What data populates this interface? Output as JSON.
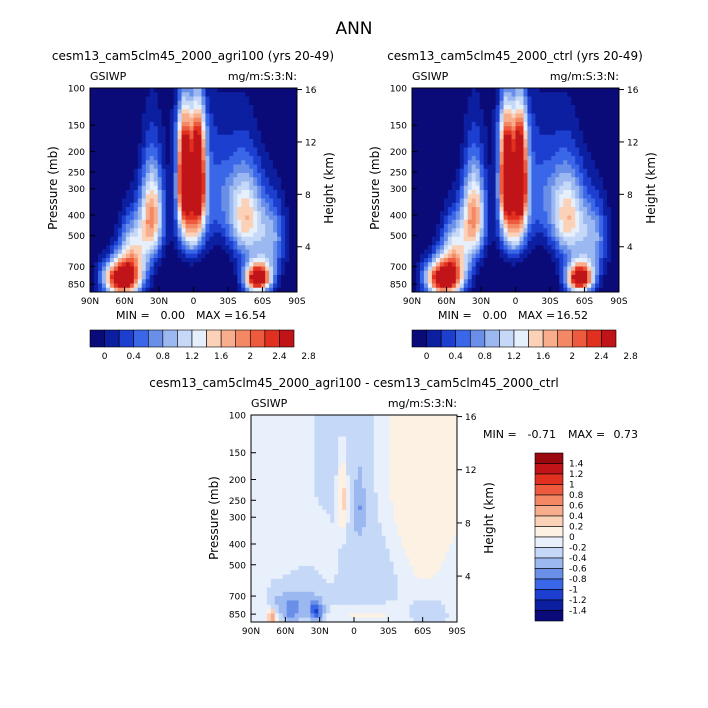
{
  "page_title": "ANN",
  "colors": {
    "cool": [
      "#0a0a78",
      "#0c1fa0",
      "#1d3fd0",
      "#3a66e8",
      "#6a8fe8",
      "#9cb8f0",
      "#c6d8f8",
      "#e6effc"
    ],
    "warm": [
      "#fdf1e4",
      "#fbd2b8",
      "#f8ae8d",
      "#f48864",
      "#ee5a3e",
      "#e23020",
      "#c01418",
      "#98080e",
      "#6e0000"
    ]
  },
  "chart_data": [
    {
      "type": "heatmap",
      "id": "agri100",
      "title": "cesm13_cam5clm45_2000_agri100 (yrs 20-49)",
      "left_label": "GSIWP",
      "right_label": "mg/m:S:3:N:",
      "ylabel": "Pressure (mb)",
      "y2label": "Height (km)",
      "xticks": [
        "90N",
        "60N",
        "30N",
        "0",
        "30S",
        "60S",
        "90S"
      ],
      "yticks": [
        "100",
        "150",
        "200",
        "250",
        "300",
        "400",
        "500",
        "700",
        "850"
      ],
      "y2ticks": [
        "16",
        "12",
        "8",
        "4"
      ],
      "xlim": [
        90,
        -90
      ],
      "ylim_mb": [
        100,
        925
      ],
      "stats": {
        "min_label": "MIN =",
        "min": "0.00",
        "max_label": "MAX =",
        "max": "16.54"
      },
      "min": 0.0,
      "max": 16.54,
      "colorbar": {
        "levels": [
          0,
          0.2,
          0.4,
          0.6,
          0.8,
          1.0,
          1.2,
          1.4,
          1.6,
          1.8,
          2.0,
          2.2,
          2.4,
          2.6,
          2.8
        ],
        "labels": [
          "0",
          "0.4",
          "0.8",
          "1.2",
          "1.6",
          "2",
          "2.4",
          "2.8"
        ]
      },
      "features": [
        {
          "lat": 62,
          "p": 800,
          "amp": 3.3,
          "slat": 11,
          "sp": 110
        },
        {
          "lat": -56,
          "p": 795,
          "amp": 3.3,
          "slat": 8,
          "sp": 90
        },
        {
          "lat": 36,
          "p": 400,
          "amp": 2.0,
          "slat": 7,
          "sp": 140
        },
        {
          "lat": 52,
          "p": 580,
          "amp": 1.4,
          "slat": 9,
          "sp": 140
        },
        {
          "lat": -46,
          "p": 420,
          "amp": 1.6,
          "slat": 10,
          "sp": 140
        },
        {
          "lat": -68,
          "p": 520,
          "amp": 1.0,
          "slat": 9,
          "sp": 150
        },
        {
          "lat": 8,
          "p": 270,
          "amp": 3.4,
          "slat": 4.2,
          "sp": 95
        },
        {
          "lat": -4,
          "p": 270,
          "amp": 3.4,
          "slat": 4.2,
          "sp": 95
        },
        {
          "lat": 2,
          "p": 460,
          "amp": 1.6,
          "slat": 8,
          "sp": 110
        },
        {
          "lat": 2,
          "p": 160,
          "amp": 0.8,
          "slat": 10,
          "sp": 40
        },
        {
          "lat": -22,
          "p": 320,
          "amp": 0.7,
          "slat": 16,
          "sp": 130
        }
      ]
    },
    {
      "type": "heatmap",
      "id": "ctrl",
      "title": "cesm13_cam5clm45_2000_ctrl (yrs 20-49)",
      "left_label": "GSIWP",
      "right_label": "mg/m:S:3:N:",
      "ylabel": "Pressure (mb)",
      "y2label": "Height (km)",
      "xticks": [
        "90N",
        "60N",
        "30N",
        "0",
        "30S",
        "60S",
        "90S"
      ],
      "yticks": [
        "100",
        "150",
        "200",
        "250",
        "300",
        "400",
        "500",
        "700",
        "850"
      ],
      "y2ticks": [
        "16",
        "12",
        "8",
        "4"
      ],
      "xlim": [
        90,
        -90
      ],
      "ylim_mb": [
        100,
        925
      ],
      "stats": {
        "min_label": "MIN =",
        "min": "0.00",
        "max_label": "MAX =",
        "max": "16.52"
      },
      "min": 0.0,
      "max": 16.52,
      "colorbar": {
        "levels": [
          0,
          0.2,
          0.4,
          0.6,
          0.8,
          1.0,
          1.2,
          1.4,
          1.6,
          1.8,
          2.0,
          2.2,
          2.4,
          2.6,
          2.8
        ],
        "labels": [
          "0",
          "0.4",
          "0.8",
          "1.2",
          "1.6",
          "2",
          "2.4",
          "2.8"
        ]
      },
      "features": [
        {
          "lat": 62,
          "p": 800,
          "amp": 3.3,
          "slat": 11,
          "sp": 110
        },
        {
          "lat": -56,
          "p": 795,
          "amp": 3.3,
          "slat": 8,
          "sp": 90
        },
        {
          "lat": 36,
          "p": 400,
          "amp": 2.0,
          "slat": 7,
          "sp": 140
        },
        {
          "lat": 52,
          "p": 580,
          "amp": 1.4,
          "slat": 9,
          "sp": 140
        },
        {
          "lat": -46,
          "p": 420,
          "amp": 1.6,
          "slat": 10,
          "sp": 140
        },
        {
          "lat": -68,
          "p": 520,
          "amp": 1.0,
          "slat": 9,
          "sp": 150
        },
        {
          "lat": 8,
          "p": 270,
          "amp": 3.4,
          "slat": 4.2,
          "sp": 95
        },
        {
          "lat": -4,
          "p": 270,
          "amp": 3.4,
          "slat": 4.2,
          "sp": 95
        },
        {
          "lat": 2,
          "p": 460,
          "amp": 1.6,
          "slat": 8,
          "sp": 110
        },
        {
          "lat": 2,
          "p": 160,
          "amp": 0.8,
          "slat": 10,
          "sp": 40
        },
        {
          "lat": -22,
          "p": 320,
          "amp": 0.7,
          "slat": 16,
          "sp": 130
        }
      ]
    },
    {
      "type": "heatmap",
      "id": "diff",
      "title": "cesm13_cam5clm45_2000_agri100 - cesm13_cam5clm45_2000_ctrl",
      "left_label": "GSIWP",
      "right_label": "mg/m:S:3:N:",
      "ylabel": "Pressure (mb)",
      "y2label": "Height (km)",
      "xticks": [
        "90N",
        "60N",
        "30N",
        "0",
        "30S",
        "60S",
        "90S"
      ],
      "yticks": [
        "100",
        "150",
        "200",
        "250",
        "300",
        "400",
        "500",
        "700",
        "850"
      ],
      "y2ticks": [
        "16",
        "12",
        "8",
        "4"
      ],
      "xlim": [
        90,
        -90
      ],
      "ylim_mb": [
        100,
        925
      ],
      "stats": {
        "min_label": "MIN =",
        "min": "-0.71",
        "max_label": "MAX =",
        "max": "0.73"
      },
      "min": -0.71,
      "max": 0.73,
      "colorbar": {
        "levels": [
          -1.4,
          -1.2,
          -1.0,
          -0.8,
          -0.6,
          -0.4,
          -0.2,
          0,
          0.2,
          0.4,
          0.6,
          0.8,
          1.0,
          1.2,
          1.4
        ],
        "labels": [
          "1.4",
          "1.2",
          "1",
          "0.8",
          "0.6",
          "0.4",
          "0.2",
          "0",
          "-0.2",
          "-0.4",
          "-0.6",
          "-0.8",
          "-1",
          "-1.2",
          "-1.4"
        ]
      },
      "features": [
        {
          "lat": -8,
          "p": 300,
          "amp": -0.16,
          "slat": 30,
          "sp": 500
        },
        {
          "lat": 72,
          "p": 880,
          "amp": 0.72,
          "slat": 2.5,
          "sp": 45
        },
        {
          "lat": 68,
          "p": 720,
          "amp": -0.15,
          "slat": 6,
          "sp": 80
        },
        {
          "lat": 55,
          "p": 820,
          "amp": -0.38,
          "slat": 6,
          "sp": 80
        },
        {
          "lat": 33,
          "p": 820,
          "amp": -0.72,
          "slat": 4,
          "sp": 60
        },
        {
          "lat": 45,
          "p": 760,
          "amp": -0.22,
          "slat": 12,
          "sp": 120
        },
        {
          "lat": 10,
          "p": 250,
          "amp": 0.38,
          "slat": 3,
          "sp": 70
        },
        {
          "lat": -5,
          "p": 270,
          "amp": -0.28,
          "slat": 3,
          "sp": 60
        },
        {
          "lat": -36,
          "p": 170,
          "amp": 0.16,
          "slat": 18,
          "sp": 180
        },
        {
          "lat": -60,
          "p": 350,
          "amp": 0.15,
          "slat": 14,
          "sp": 200
        },
        {
          "lat": -85,
          "p": 180,
          "amp": 0.14,
          "slat": 6,
          "sp": 120
        },
        {
          "lat": -65,
          "p": 850,
          "amp": -0.2,
          "slat": 10,
          "sp": 80
        },
        {
          "lat": 20,
          "p": 450,
          "amp": 0.08,
          "slat": 10,
          "sp": 150
        },
        {
          "lat": -10,
          "p": 860,
          "amp": 0.15,
          "slat": 25,
          "sp": 70
        }
      ]
    }
  ]
}
